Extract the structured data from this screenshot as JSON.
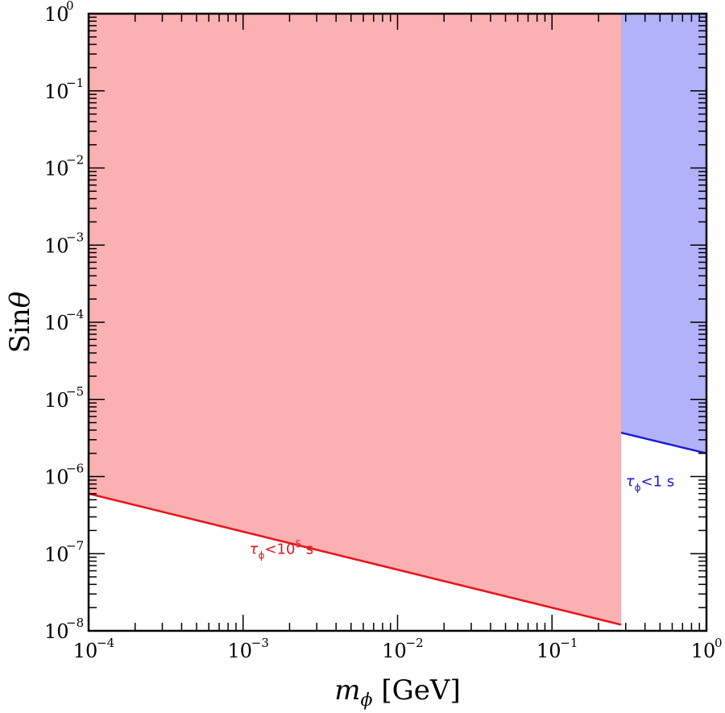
{
  "chart_data": {
    "type": "area",
    "xscale": "log",
    "yscale": "log",
    "xlim": [
      0.0001,
      1
    ],
    "ylim": [
      1e-08,
      1
    ],
    "grid": false,
    "xlabel": {
      "symbol": "m",
      "subscript": "ϕ",
      "unit": " [GeV]"
    },
    "ylabel": {
      "text": "Sin",
      "symbol": "θ"
    },
    "x_ticks": [
      {
        "value": 0.0001,
        "base": "10",
        "exp": "−4"
      },
      {
        "value": 0.001,
        "base": "10",
        "exp": "−3"
      },
      {
        "value": 0.01,
        "base": "10",
        "exp": "−2"
      },
      {
        "value": 0.1,
        "base": "10",
        "exp": "−1"
      },
      {
        "value": 1,
        "base": "10",
        "exp": "0"
      }
    ],
    "y_ticks": [
      {
        "value": 1e-08,
        "base": "10",
        "exp": "−8"
      },
      {
        "value": 1e-07,
        "base": "10",
        "exp": "−7"
      },
      {
        "value": 1e-06,
        "base": "10",
        "exp": "−6"
      },
      {
        "value": 1e-05,
        "base": "10",
        "exp": "−5"
      },
      {
        "value": 0.0001,
        "base": "10",
        "exp": "−4"
      },
      {
        "value": 0.001,
        "base": "10",
        "exp": "−3"
      },
      {
        "value": 0.01,
        "base": "10",
        "exp": "−2"
      },
      {
        "value": 0.1,
        "base": "10",
        "exp": "−1"
      },
      {
        "value": 1,
        "base": "10",
        "exp": "0"
      }
    ],
    "series": [
      {
        "fill": "#fbb0b2",
        "line_color": "#e8141c",
        "x_range": [
          0.0001,
          0.28
        ],
        "boundary": [
          [
            0.0001,
            6e-07
          ],
          [
            0.28,
            1.2e-08
          ]
        ]
      },
      {
        "fill": "#b2b2fb",
        "line_color": "#1a1ad6",
        "x_range": [
          0.28,
          1
        ],
        "boundary": [
          [
            0.28,
            3.7e-06
          ],
          [
            1,
            2e-06
          ]
        ]
      }
    ],
    "annotations": [
      {
        "tau": "τ",
        "sub": "ϕ",
        "text": "<10",
        "sup": "5",
        "unit": " s",
        "color": "#e8141c",
        "at": [
          0.0011,
          1e-07
        ]
      },
      {
        "tau": "τ",
        "sub": "ϕ",
        "text": "<1 s",
        "sup": "",
        "unit": "",
        "color": "#1a1ad6",
        "at": [
          0.3,
          7.5e-07
        ]
      }
    ]
  }
}
